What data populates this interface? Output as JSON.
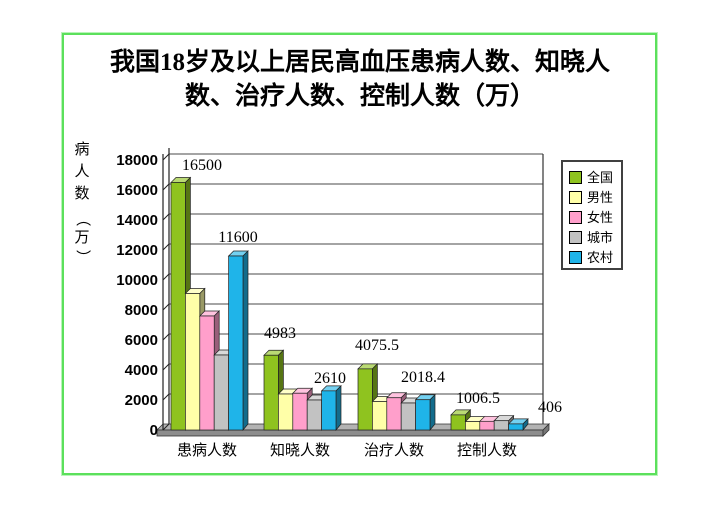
{
  "page": {
    "title_line1": "我国18岁及以上居民高血压患病人数、知晓人",
    "title_line2": "数、治疗人数、控制人数（万）",
    "border_color": "#5ce05c"
  },
  "chart_data": {
    "type": "bar",
    "title": "我国18岁及以上居民高血压患病人数、知晓人数、治疗人数、控制人数（万）",
    "ylabel": "病人数（万）",
    "xlabel": "",
    "ylim": [
      0,
      18000
    ],
    "ytick_step": 2000,
    "grid": true,
    "legend_position": "right",
    "style": "3d-clustered-column",
    "categories": [
      "患病人数",
      "知晓人数",
      "治疗人数",
      "控制人数"
    ],
    "category_keys": [
      "prevalence",
      "awareness",
      "treatment",
      "control"
    ],
    "series": [
      {
        "name": "全国",
        "key": "national",
        "color": "#8fc31f",
        "labeled": true,
        "values": [
          16500,
          4983,
          4075.5,
          1006.5
        ]
      },
      {
        "name": "男性",
        "key": "male",
        "color": "#ffffa8",
        "labeled": false,
        "values": [
          9100,
          2400,
          1900,
          560
        ]
      },
      {
        "name": "女性",
        "key": "female",
        "color": "#ff9fcb",
        "labeled": false,
        "values": [
          7600,
          2450,
          2150,
          580
        ]
      },
      {
        "name": "城市",
        "key": "urban",
        "color": "#c2c2c2",
        "labeled": false,
        "values": [
          5000,
          2000,
          1800,
          620
        ]
      },
      {
        "name": "农村",
        "key": "rural",
        "color": "#1fb4e9",
        "labeled": true,
        "values": [
          11600,
          2610,
          2018.4,
          406
        ]
      }
    ],
    "visible_data_labels": [
      "16500",
      "11600",
      "4983",
      "2610",
      "4075.5",
      "2018.4",
      "1006.5",
      "406"
    ]
  }
}
